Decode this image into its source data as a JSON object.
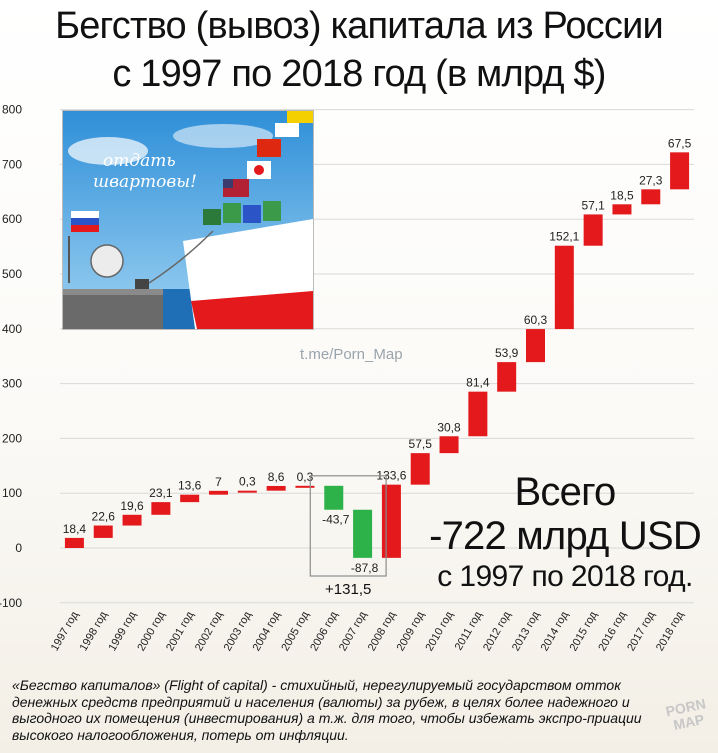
{
  "title_line1": "Бегство (вывоз) капитала из России",
  "title_line2": "с 1997 по 2018 год (в млрд $)",
  "watermark": "t.me/Porn_Map",
  "cartoon_text_line1": "отдать",
  "cartoon_text_line2": "швартовы!",
  "total_line1": "Всего",
  "total_line2": "-722 млрд USD",
  "total_line3": "с 1997 по 2018 год.",
  "footnote": "«Бегство капиталов» (Flight of capital) - стихийный, нерегулируемый государством отток денежных средств предприятий и населения (валюты) за рубеж, в целях более надежного и выгодного их помещения (инвестирования) а т.ж. для того, чтобы избежать экспро-приации высокого налогообложения, потерь от инфляции.",
  "logo_line1": "PORN",
  "logo_line2": "MAP",
  "colors": {
    "increase": "#e3191c",
    "decrease": "#2db24a",
    "grid": "#d9d9d9"
  },
  "chart_data": {
    "type": "bar",
    "subtype": "waterfall",
    "categories": [
      "1997 год",
      "1998 год",
      "1999 год",
      "2000 год",
      "2001 год",
      "2002 год",
      "2003 год",
      "2004 год",
      "2005 год",
      "2006 год",
      "2007 год",
      "2008 год",
      "2009 год",
      "2010 год",
      "2011 год",
      "2012 год",
      "2013 год",
      "2014 год",
      "2015 год",
      "2016 год",
      "2017 год",
      "2018 год"
    ],
    "values": [
      18.4,
      22.6,
      19.6,
      23.1,
      13.6,
      7,
      0.3,
      8.6,
      0.3,
      -43.7,
      -87.8,
      133.6,
      57.5,
      30.8,
      81.4,
      53.9,
      60.3,
      152.1,
      57.1,
      18.5,
      27.3,
      67.5
    ],
    "value_labels": [
      "18,4",
      "22,6",
      "19,6",
      "23,1",
      "13,6",
      "7",
      "0,3",
      "8,6",
      "0,3",
      "-43,7",
      "-87,8",
      "133,6",
      "57,5",
      "30,8",
      "81,4",
      "53,9",
      "60,3",
      "152,1",
      "57,1",
      "18,5",
      "27,3",
      "67,5"
    ],
    "annotation": "+131,5",
    "ylim": [
      -100,
      800
    ],
    "yticks": [
      -100,
      0,
      100,
      200,
      300,
      400,
      500,
      600,
      700,
      800
    ],
    "grid": true
  }
}
